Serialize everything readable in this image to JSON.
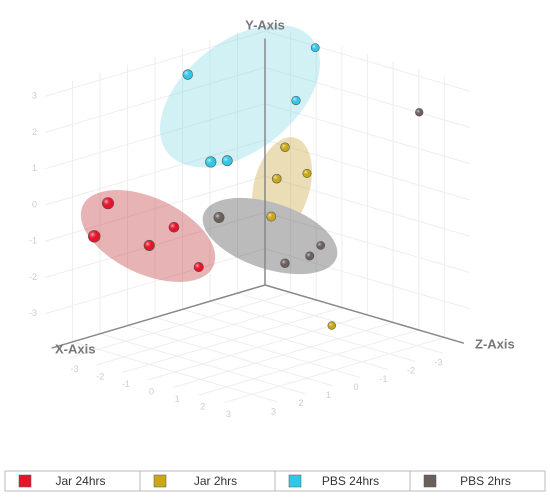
{
  "chart_data": {
    "type": "scatter3d",
    "xlabel": "X-Axis",
    "ylabel": "Y-Axis",
    "zlabel": "Z-Axis",
    "xlim": [
      -4,
      4
    ],
    "ylim": [
      -4,
      4
    ],
    "zlim": [
      -4,
      4
    ],
    "xticks": [
      -3,
      -2,
      -1,
      0,
      1,
      2,
      3
    ],
    "yticks": [
      -3,
      -2,
      -1,
      0,
      1,
      2,
      3
    ],
    "zticks": [
      -3,
      -2,
      -1,
      0,
      1,
      2,
      3
    ],
    "grid": true,
    "legend": "bottom",
    "series": [
      {
        "name": "Jar 24hrs",
        "color": "#e8132b",
        "x": [
          3.2,
          3.7,
          1.7,
          0.8,
          -0.1
        ],
        "y": [
          0.2,
          -0.6,
          -1.3,
          -1.0,
          -2.3
        ],
        "z": [
          -2.4,
          -2.4,
          -2.4,
          -2.4,
          -2.4
        ]
      },
      {
        "name": "Jar 2hrs",
        "color": "#c8a818",
        "x": [
          -1.0,
          -0.7,
          -1.8,
          -0.5,
          -2.7
        ],
        "y": [
          1.3,
          0.5,
          0.4,
          -0.5,
          -4.0
        ],
        "z": [
          0,
          0,
          0,
          0,
          0
        ]
      },
      {
        "name": "PBS 24hrs",
        "color": "#30c8e8",
        "x": [
          -2.1,
          0.3,
          -1.4,
          1.1,
          1.7
        ],
        "y": [
          3.8,
          3.1,
          2.5,
          1.4,
          1.5
        ],
        "z": [
          0,
          -2.4,
          0,
          0,
          0
        ]
      },
      {
        "name": "PBS 2hrs",
        "color": "#6b5f5c",
        "x": [
          1.4,
          -2.3,
          -1.9,
          -1.0,
          -2.9
        ],
        "y": [
          -0.1,
          -1.7,
          -1.9,
          -1.9,
          2.5
        ],
        "z": [
          0,
          0,
          0,
          0,
          3.2
        ]
      }
    ]
  }
}
